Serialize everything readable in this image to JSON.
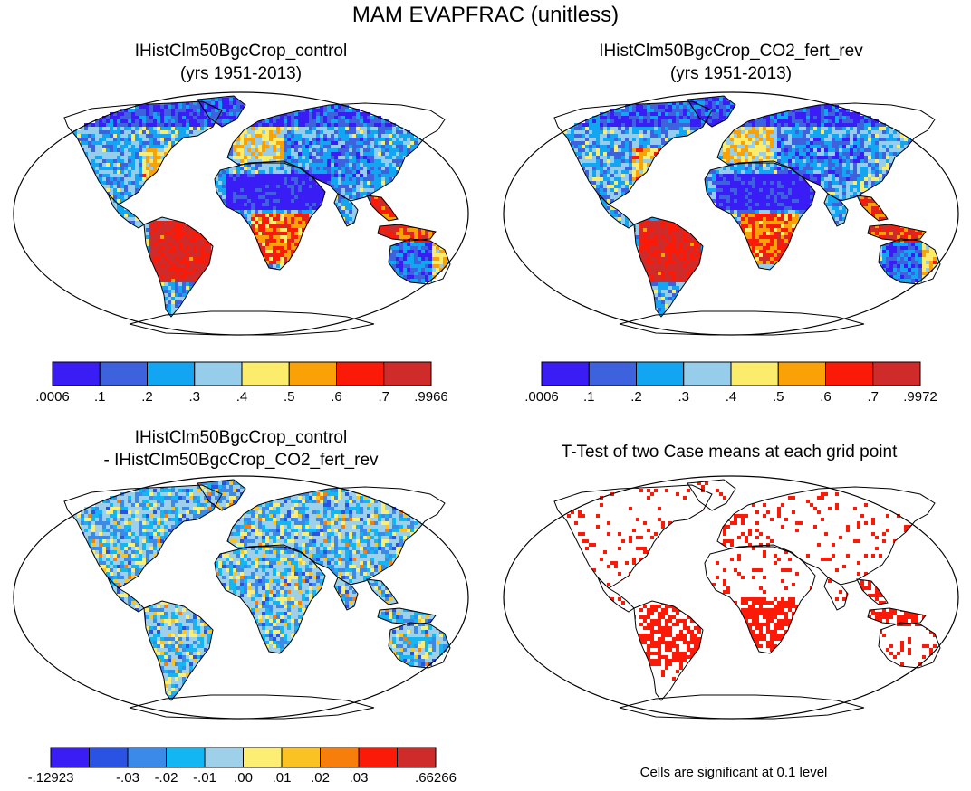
{
  "title": "MAM EVAPFRAC (unitless)",
  "panels": [
    {
      "title_lines": [
        "IHistClm50BgcCrop_control",
        "(yrs 1951-2013)"
      ],
      "colorbar": {
        "colors": [
          "#3a1cf5",
          "#3e62dd",
          "#12a5f2",
          "#95cdea",
          "#fbec6b",
          "#f9a106",
          "#fb1a07",
          "#d02b2b"
        ],
        "labels": [
          ".0006",
          ".1",
          ".2",
          ".3",
          ".4",
          ".5",
          ".6",
          ".7",
          ".9966"
        ]
      }
    },
    {
      "title_lines": [
        "IHistClm50BgcCrop_CO2_fert_rev",
        "(yrs 1951-2013)"
      ],
      "colorbar": {
        "colors": [
          "#3a1cf5",
          "#3e62dd",
          "#12a5f2",
          "#95cdea",
          "#fbec6b",
          "#f9a106",
          "#fb1a07",
          "#d02b2b"
        ],
        "labels": [
          ".0006",
          ".1",
          ".2",
          ".3",
          ".4",
          ".5",
          ".6",
          ".7",
          ".9972"
        ]
      }
    },
    {
      "title_lines": [
        "IHistClm50BgcCrop_control",
        "- IHistClm50BgcCrop_CO2_fert_rev"
      ],
      "colorbar": {
        "colors": [
          "#3a1cf5",
          "#2a53e3",
          "#3b8ae9",
          "#12b6f2",
          "#9fd0ea",
          "#fbee72",
          "#fbc223",
          "#f87e0c",
          "#fb1a07",
          "#d02b2b"
        ],
        "labels": [
          "-.12923",
          "",
          "-.03",
          "-.02",
          "-.01",
          ".00",
          ".01",
          ".02",
          ".03",
          "",
          ".66266"
        ]
      }
    },
    {
      "title_lines": [
        "T-Test of two Case means at each grid point"
      ],
      "note": "Cells are significant at 0.1 level",
      "significance_color": "#fb1a07"
    }
  ]
}
